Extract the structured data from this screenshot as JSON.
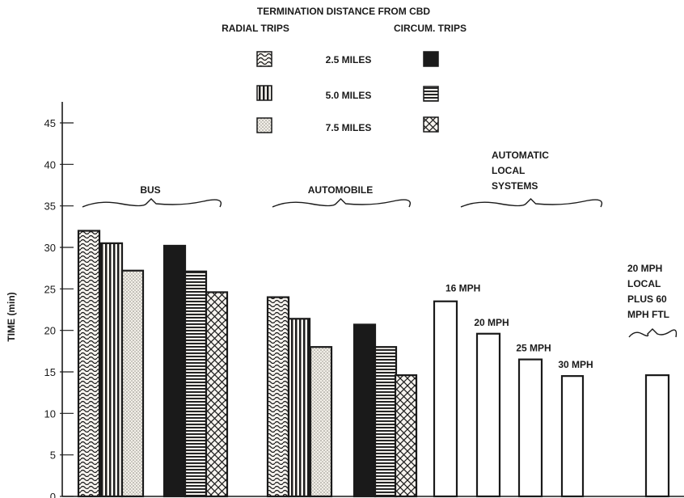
{
  "colors": {
    "ink": "#1a1a1a",
    "paper": "#ffffff",
    "light": "#f4f1ec"
  },
  "legend": {
    "title": "TERMINATION DISTANCE FROM CBD",
    "left_header": "RADIAL TRIPS",
    "right_header": "CIRCUM. TRIPS",
    "items": [
      "2.5 MILES",
      "5.0 MILES",
      "7.5 MILES"
    ]
  },
  "chart_data": {
    "type": "bar",
    "ylabel": "TIME (min)",
    "ylim": [
      0,
      45
    ],
    "yticks": [
      0,
      5,
      10,
      15,
      20,
      25,
      30,
      35,
      40,
      45
    ],
    "groups": [
      {
        "name": "BUS",
        "bars": [
          {
            "trip": "radial",
            "distance": "2.5 MILES",
            "value": 32
          },
          {
            "trip": "radial",
            "distance": "5.0 MILES",
            "value": 30.5
          },
          {
            "trip": "radial",
            "distance": "7.5 MILES",
            "value": 27.2
          },
          {
            "trip": "circum",
            "distance": "2.5 MILES",
            "value": 30.2
          },
          {
            "trip": "circum",
            "distance": "5.0 MILES",
            "value": 27.1
          },
          {
            "trip": "circum",
            "distance": "7.5 MILES",
            "value": 24.6
          }
        ]
      },
      {
        "name": "AUTOMOBILE",
        "bars": [
          {
            "trip": "radial",
            "distance": "2.5 MILES",
            "value": 24
          },
          {
            "trip": "radial",
            "distance": "5.0 MILES",
            "value": 21.4
          },
          {
            "trip": "radial",
            "distance": "7.5 MILES",
            "value": 18
          },
          {
            "trip": "circum",
            "distance": "2.5 MILES",
            "value": 20.7
          },
          {
            "trip": "circum",
            "distance": "5.0 MILES",
            "value": 18
          },
          {
            "trip": "circum",
            "distance": "7.5 MILES",
            "value": 14.6
          }
        ]
      },
      {
        "name_lines": [
          "AUTOMATIC",
          "LOCAL",
          "SYSTEMS"
        ],
        "bars": [
          {
            "label": "16 MPH",
            "value": 23.5
          },
          {
            "label": "20 MPH",
            "value": 19.6
          },
          {
            "label": "25 MPH",
            "value": 16.5
          },
          {
            "label": "30 MPH",
            "value": 14.5
          }
        ]
      },
      {
        "name_lines": [
          "20 MPH",
          "LOCAL",
          "PLUS 60",
          "MPH FTL"
        ],
        "bars": [
          {
            "value": 14.6
          }
        ]
      }
    ]
  }
}
